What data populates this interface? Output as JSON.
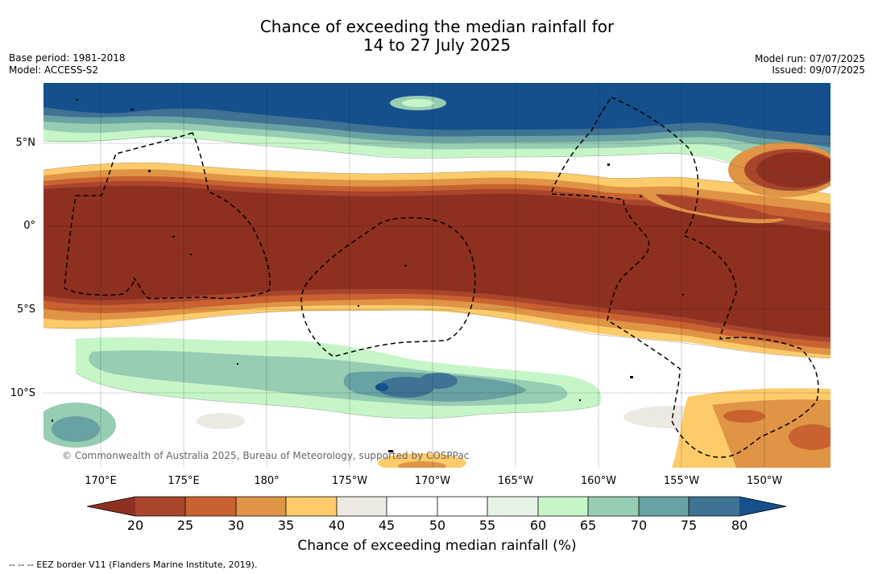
{
  "title_line1": "Chance of exceeding the median rainfall for",
  "title_line2": "14 to 27 July 2025",
  "base_period": "Base period: 1981-2018",
  "model": "Model: ACCESS-S2",
  "model_run": "Model run: 07/07/2025",
  "issued": "Issued: 09/07/2025",
  "copyright": "© Commonwealth of Australia 2025, Bureau of Meteorology, supported by COSPPac",
  "lat_labels": [
    "5°N",
    "0°",
    "5°S",
    "10°S"
  ],
  "lon_labels": [
    "170°E",
    "175°E",
    "180°",
    "175°W",
    "170°W",
    "165°W",
    "160°W",
    "155°W",
    "150°W"
  ],
  "colorbar": {
    "ticks": [
      "20",
      "25",
      "30",
      "35",
      "40",
      "45",
      "50",
      "55",
      "60",
      "65",
      "70",
      "75",
      "80"
    ],
    "label": "Chance of exceeding median rainfall (%)",
    "colors": {
      "below20": "#8e3020",
      "20-25": "#a9452c",
      "25-30": "#c96230",
      "30-35": "#df9446",
      "35-40": "#fdcb6a",
      "40-45": "#ece9e2",
      "45-50": "#ffffff",
      "50-55": "#ffffff",
      "55-60": "#e6f4e6",
      "60-65": "#c6f6c8",
      "65-70": "#97cdb3",
      "70-75": "#69a2a2",
      "75-80": "#3f7293",
      "above80": "#15508c"
    }
  },
  "legend_footnote": "-- -- -- EEZ border V11 (Flanders Marine Institute, 2019)."
}
